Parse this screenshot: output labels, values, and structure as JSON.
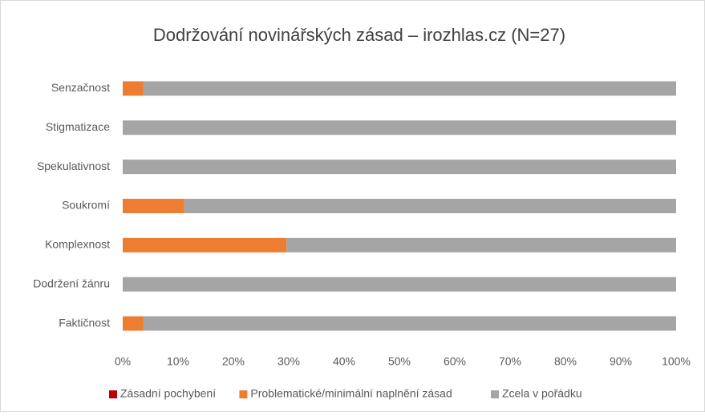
{
  "chart_data": {
    "type": "stacked-barh",
    "title": "Dodržování novinářských zásad – irozhlas.cz (N=27)",
    "categories": [
      "Senzačnost",
      "Stigmatizace",
      "Spekulativnost",
      "Soukromí",
      "Komplexnost",
      "Dodržení žánru",
      "Faktičnost"
    ],
    "series": [
      {
        "name": "Zásadní pochybení",
        "color": "#c00000",
        "values": [
          0,
          0,
          0,
          0,
          0,
          0,
          0
        ]
      },
      {
        "name": "Problematické/minimální naplnění zásad",
        "color": "#ed7d31",
        "values": [
          3.7,
          0,
          0,
          11.1,
          29.6,
          0,
          3.7
        ]
      },
      {
        "name": "Zcela v pořádku",
        "color": "#a5a5a5",
        "values": [
          96.3,
          100,
          100,
          88.9,
          70.4,
          100,
          96.3
        ]
      }
    ],
    "xlim": [
      0,
      100
    ],
    "xticks": [
      {
        "value": 0,
        "label": "0%"
      },
      {
        "value": 10,
        "label": "10%"
      },
      {
        "value": 20,
        "label": "20%"
      },
      {
        "value": 30,
        "label": "30%"
      },
      {
        "value": 40,
        "label": "40%"
      },
      {
        "value": 50,
        "label": "50%"
      },
      {
        "value": 60,
        "label": "60%"
      },
      {
        "value": 70,
        "label": "70%"
      },
      {
        "value": 80,
        "label": "80%"
      },
      {
        "value": 90,
        "label": "90%"
      },
      {
        "value": 100,
        "label": "100%"
      }
    ],
    "grid": false,
    "legend": "bottom"
  }
}
